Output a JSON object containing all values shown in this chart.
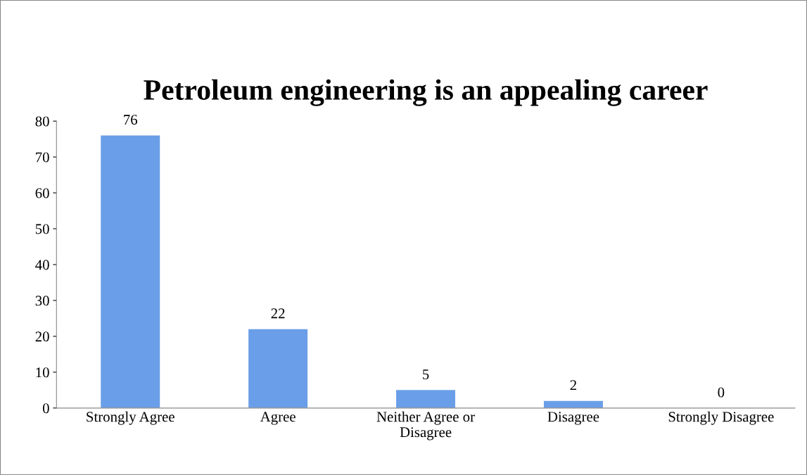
{
  "chart_data": {
    "type": "bar",
    "title": "Petroleum engineering is an appealing career",
    "categories": [
      "Strongly Agree",
      "Agree",
      "Neither Agree or\nDisagree",
      "Disagree",
      "Strongly Disagree"
    ],
    "values": [
      76,
      22,
      5,
      2,
      0
    ],
    "color": "#6a9ee8",
    "ylim": [
      0,
      80
    ],
    "yticks": [
      0,
      10,
      20,
      30,
      40,
      50,
      60,
      70,
      80
    ],
    "grid": false,
    "data_labels": true
  }
}
